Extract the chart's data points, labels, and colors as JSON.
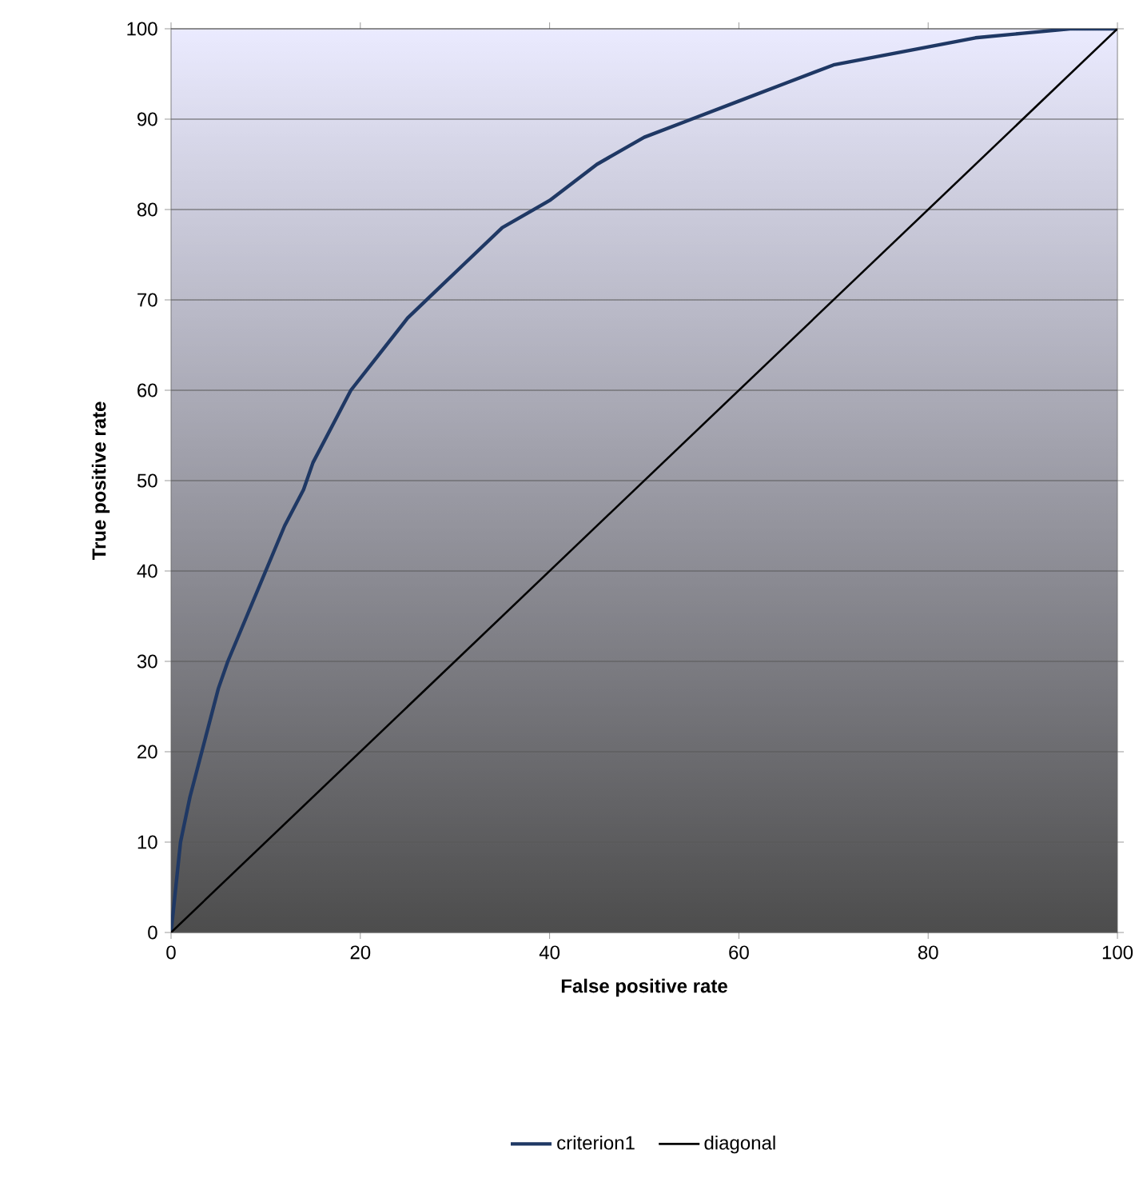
{
  "chart_data": {
    "type": "line",
    "xlabel": "False positive rate",
    "ylabel": "True positive rate",
    "xlim": [
      0,
      100
    ],
    "ylim": [
      0,
      100
    ],
    "xticks": [
      0,
      20,
      40,
      60,
      80,
      100
    ],
    "yticks": [
      0,
      10,
      20,
      30,
      40,
      50,
      60,
      70,
      80,
      90,
      100
    ],
    "grid": "y",
    "legend": "bottom",
    "marker": "none",
    "line_style": "solid",
    "series": [
      {
        "name": "criterion1",
        "color": "#1f3864",
        "x": [
          0,
          0.5,
          1,
          2,
          3,
          4,
          5,
          6,
          8,
          10,
          12,
          14,
          15,
          17,
          19,
          22,
          25,
          28,
          31,
          35,
          40,
          45,
          50,
          55,
          60,
          65,
          70,
          75,
          80,
          85,
          90,
          95,
          100
        ],
        "values": [
          0,
          5,
          10,
          15,
          19,
          23,
          27,
          30,
          35,
          40,
          45,
          49,
          52,
          56,
          60,
          64,
          68,
          71,
          74,
          78,
          81,
          85,
          88,
          90,
          92,
          94,
          96,
          97,
          98,
          99,
          99.5,
          100,
          100
        ]
      },
      {
        "name": "diagonal",
        "color": "#000000",
        "x": [
          0,
          100
        ],
        "values": [
          0,
          100
        ]
      }
    ]
  }
}
